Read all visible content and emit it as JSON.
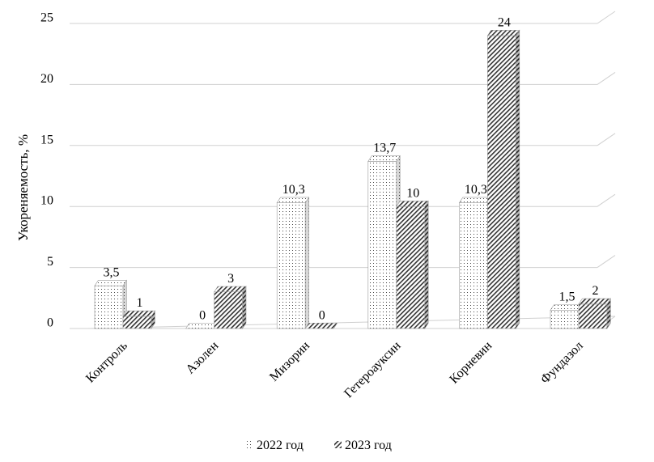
{
  "chart_data": {
    "type": "bar",
    "ylabel": "Укореняемость, %",
    "ylim": [
      0,
      25
    ],
    "yticks": [
      0,
      5,
      10,
      15,
      20,
      25
    ],
    "grid": true,
    "legend_position": "bottom",
    "categories": [
      "Контроль",
      "Азолен",
      "Мизорин",
      "Гетероауксин",
      "Корневин",
      "Фундазол"
    ],
    "series": [
      {
        "name": "2022 год",
        "pattern": "dots",
        "values": [
          3.5,
          0,
          10.3,
          13.7,
          10.3,
          1.5
        ],
        "labels": [
          "3,5",
          "0",
          "10,3",
          "13,7",
          "10,3",
          "1,5"
        ]
      },
      {
        "name": "2023 год",
        "pattern": "diagonal",
        "values": [
          1,
          3,
          0,
          10,
          24,
          2
        ],
        "labels": [
          "1",
          "3",
          "0",
          "10",
          "24",
          "2"
        ]
      }
    ]
  }
}
